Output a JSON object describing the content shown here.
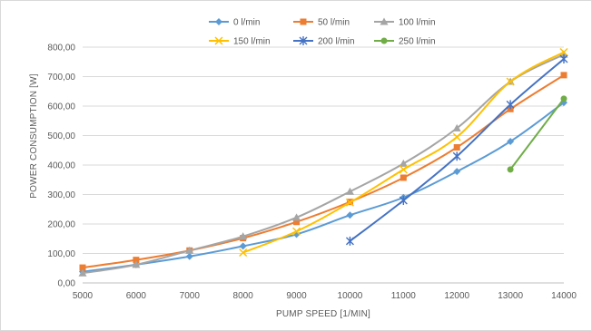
{
  "chart_data": {
    "type": "line",
    "xlabel": "PUMP SPEED [1/MIN]",
    "ylabel": "POWER CONSUMPTION [W]",
    "x_ticks": [
      "5000",
      "6000",
      "7000",
      "8000",
      "9000",
      "10000",
      "11000",
      "12000",
      "13000",
      "14000"
    ],
    "y_ticks": [
      "0,00",
      "100,00",
      "200,00",
      "300,00",
      "400,00",
      "500,00",
      "600,00",
      "700,00",
      "800,00"
    ],
    "xlim": [
      5000,
      14000
    ],
    "ylim": [
      0,
      800
    ],
    "grid": "horizontal",
    "legend_position": "top",
    "series": [
      {
        "name": "0 l/min",
        "color": "#5B9BD5",
        "marker": "diamond",
        "x": [
          5000,
          6000,
          7000,
          8000,
          9000,
          10000,
          11000,
          12000,
          13000,
          14000
        ],
        "y": [
          38,
          62,
          90,
          125,
          165,
          230,
          290,
          378,
          480,
          612
        ]
      },
      {
        "name": "50  l/min",
        "color": "#ED7D31",
        "marker": "square",
        "x": [
          5000,
          6000,
          7000,
          8000,
          9000,
          10000,
          11000,
          12000,
          13000,
          14000
        ],
        "y": [
          52,
          78,
          110,
          152,
          207,
          275,
          357,
          460,
          590,
          705
        ]
      },
      {
        "name": "100 l/min",
        "color": "#A5A5A5",
        "marker": "triangle",
        "x": [
          5000,
          6000,
          7000,
          8000,
          9000,
          10000,
          11000,
          12000,
          13000,
          14000
        ],
        "y": [
          33,
          62,
          110,
          158,
          222,
          310,
          405,
          525,
          683,
          775
        ]
      },
      {
        "name": "150 l/min",
        "color": "#FFC000",
        "marker": "x",
        "x": [
          8000,
          9000,
          10000,
          11000,
          12000,
          13000,
          14000
        ],
        "y": [
          103,
          175,
          273,
          385,
          495,
          683,
          783
        ]
      },
      {
        "name": "200 l/min",
        "color": "#4472C4",
        "marker": "star",
        "x": [
          10000,
          11000,
          12000,
          13000,
          14000
        ],
        "y": [
          142,
          280,
          430,
          605,
          760
        ]
      },
      {
        "name": "250 l/min",
        "color": "#70AD47",
        "marker": "circle",
        "x": [
          13000,
          14000
        ],
        "y": [
          385,
          625
        ]
      }
    ]
  }
}
